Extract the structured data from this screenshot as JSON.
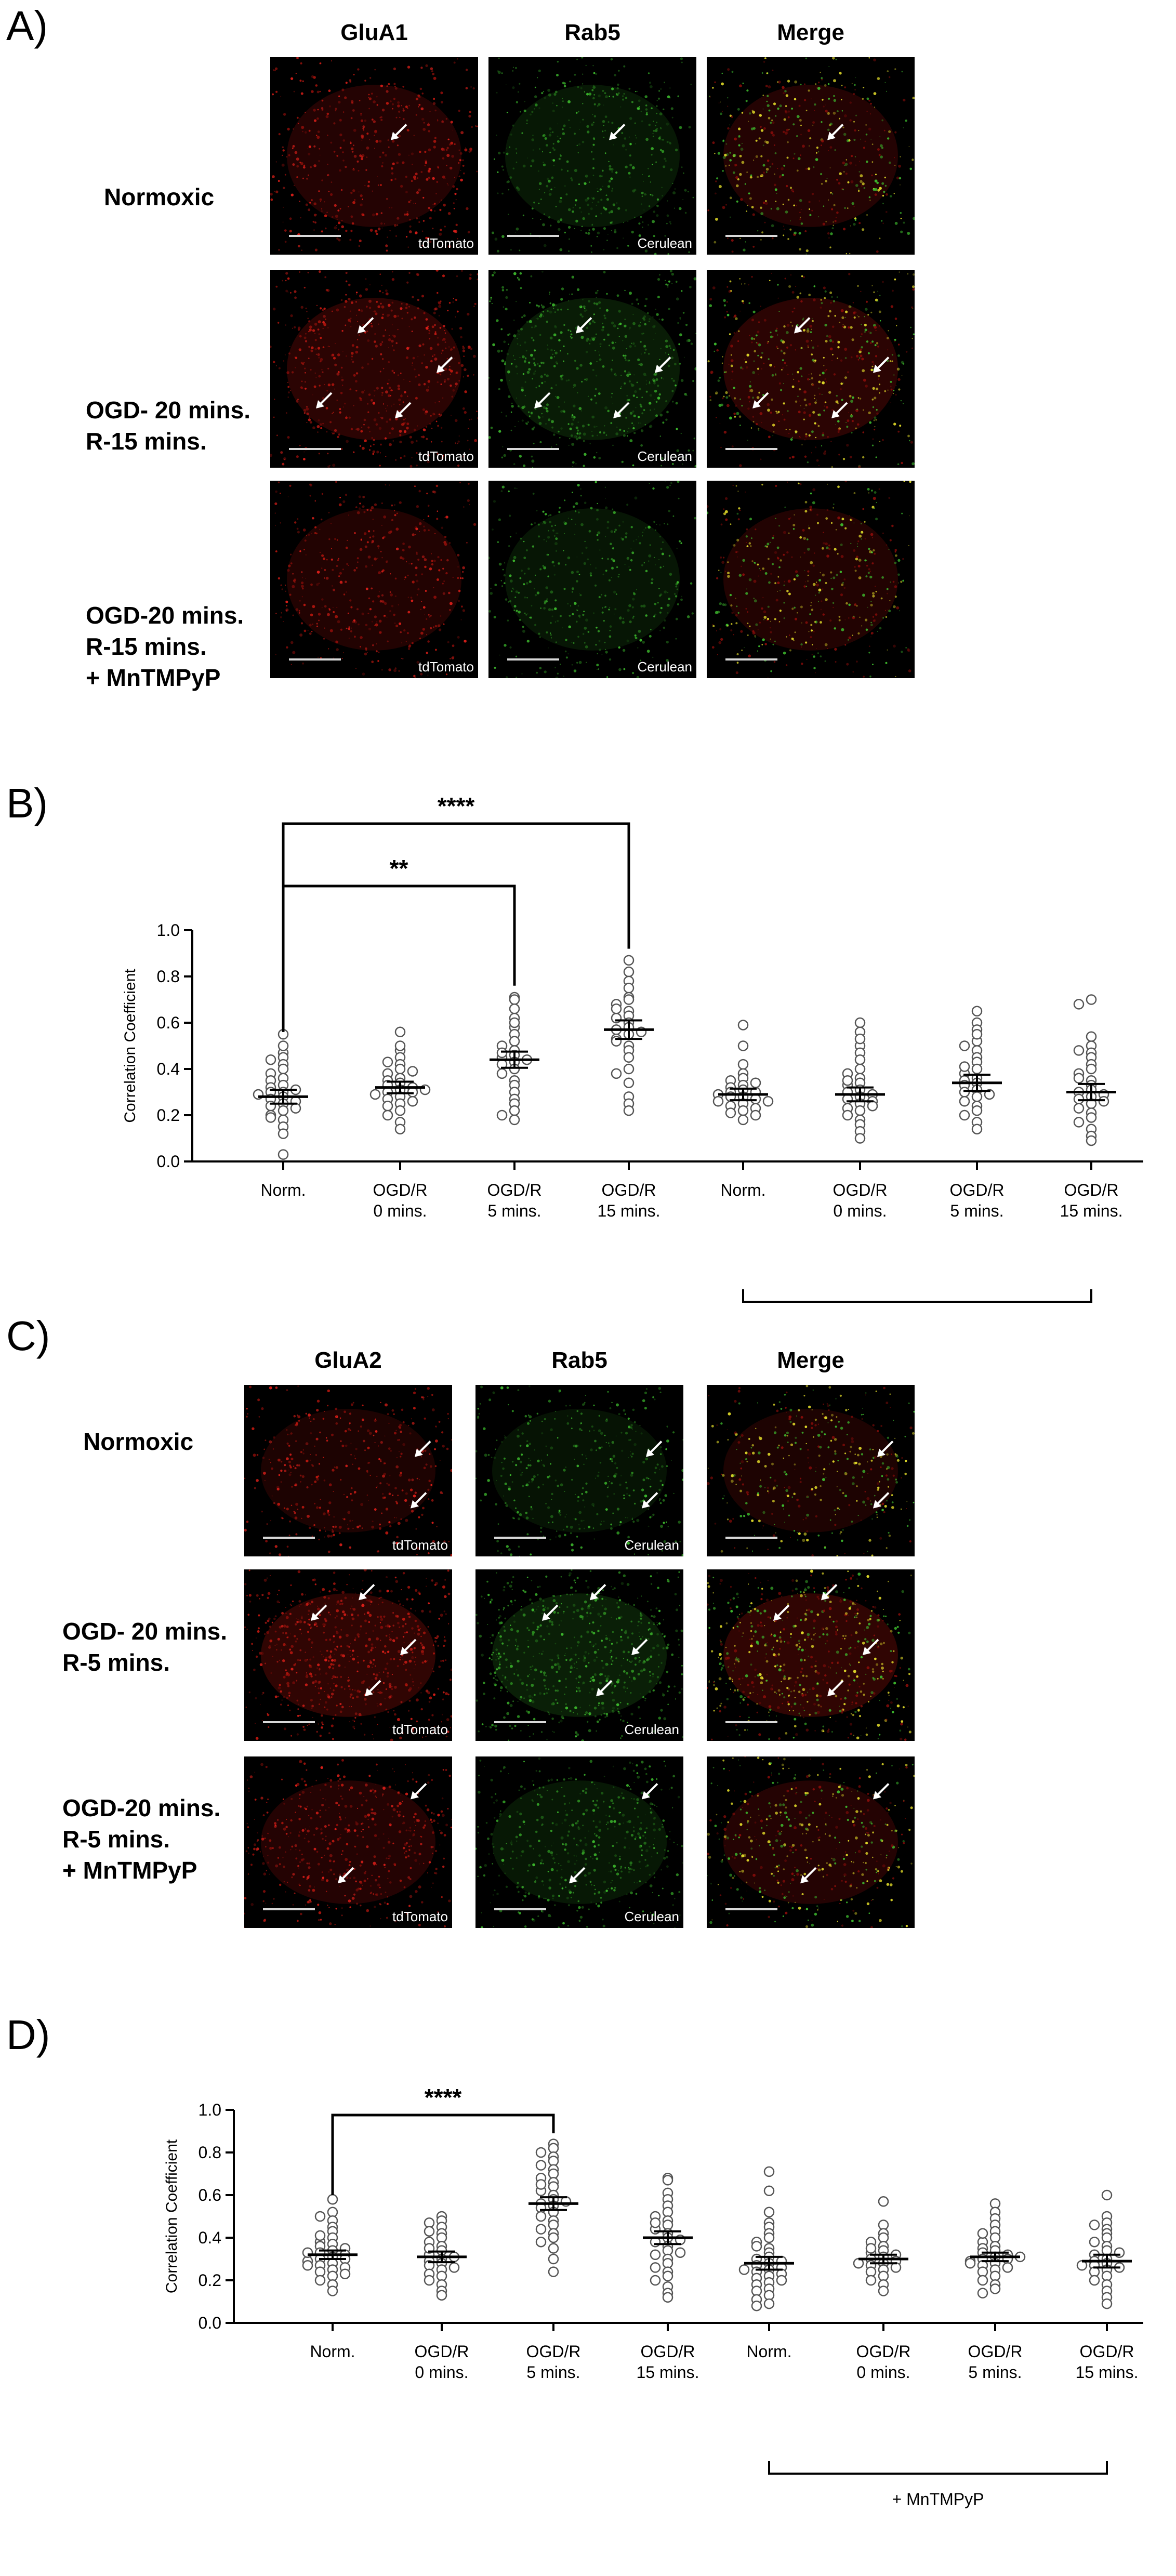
{
  "panels": {
    "a": {
      "letter": "A)",
      "columns": [
        "GluA1",
        "Rab5",
        "Merge"
      ],
      "rows": [
        {
          "label": [
            "Normoxic"
          ],
          "channels": [
            "tdTomato",
            "Cerulean",
            ""
          ]
        },
        {
          "label": [
            "OGD- 20 mins.",
            "R-15 mins."
          ],
          "channels": [
            "tdTomato",
            "Cerulean",
            ""
          ]
        },
        {
          "label": [
            "OGD-20 mins.",
            "R-15 mins.",
            "+ MnTMPyP"
          ],
          "channels": [
            "tdTomato",
            "Cerulean",
            ""
          ]
        }
      ]
    },
    "b": {
      "letter": "B)"
    },
    "c": {
      "letter": "C)",
      "columns": [
        "GluA2",
        "Rab5",
        "Merge"
      ],
      "rows": [
        {
          "label": [
            "Normoxic"
          ],
          "channels": [
            "tdTomato",
            "Cerulean",
            ""
          ]
        },
        {
          "label": [
            "OGD- 20 mins.",
            "R-5 mins."
          ],
          "channels": [
            "tdTomato",
            "Cerulean",
            ""
          ]
        },
        {
          "label": [
            "OGD-20 mins.",
            "R-5 mins.",
            "+ MnTMPyP"
          ],
          "channels": [
            "tdTomato",
            "Cerulean",
            ""
          ]
        }
      ]
    },
    "d": {
      "letter": "D)"
    }
  },
  "colors": {
    "red_channel": "#e0201a",
    "green_channel": "#3fbf2f",
    "merge_yellow": "#e6e02a"
  },
  "chart_data": [
    {
      "id": "B",
      "type": "scatter",
      "title": "",
      "ylabel": "Correlation Coefficient",
      "ylim": [
        0,
        1.0
      ],
      "yticks": [
        "0.0",
        "0.2",
        "0.4",
        "0.6",
        "0.8",
        "1.0"
      ],
      "categories": [
        [
          "Norm."
        ],
        [
          "OGD/R",
          "0 mins."
        ],
        [
          "OGD/R",
          "5 mins."
        ],
        [
          "OGD/R",
          "15 mins."
        ],
        [
          "Norm."
        ],
        [
          "OGD/R",
          "0 mins."
        ],
        [
          "OGD/R",
          "5 mins."
        ],
        [
          "OGD/R",
          "15 mins."
        ]
      ],
      "means": [
        0.28,
        0.32,
        0.44,
        0.57,
        0.29,
        0.29,
        0.34,
        0.3
      ],
      "sem": [
        0.03,
        0.025,
        0.035,
        0.04,
        0.025,
        0.03,
        0.035,
        0.035
      ],
      "points": [
        [
          0.55,
          0.47,
          0.45,
          0.42,
          0.4,
          0.38,
          0.36,
          0.35,
          0.33,
          0.32,
          0.3,
          0.3,
          0.28,
          0.27,
          0.26,
          0.25,
          0.24,
          0.22,
          0.2,
          0.18,
          0.15,
          0.12,
          0.03,
          0.5,
          0.44,
          0.31,
          0.29,
          0.23,
          0.19
        ],
        [
          0.56,
          0.48,
          0.45,
          0.42,
          0.4,
          0.38,
          0.36,
          0.35,
          0.34,
          0.33,
          0.32,
          0.31,
          0.3,
          0.3,
          0.29,
          0.28,
          0.27,
          0.26,
          0.25,
          0.24,
          0.22,
          0.2,
          0.17,
          0.14,
          0.5,
          0.43,
          0.39,
          0.31
        ],
        [
          0.71,
          0.7,
          0.66,
          0.62,
          0.58,
          0.55,
          0.52,
          0.5,
          0.48,
          0.46,
          0.45,
          0.44,
          0.43,
          0.42,
          0.4,
          0.38,
          0.35,
          0.33,
          0.3,
          0.27,
          0.25,
          0.22,
          0.2,
          0.18,
          0.6,
          0.47
        ],
        [
          0.87,
          0.82,
          0.78,
          0.75,
          0.71,
          0.7,
          0.68,
          0.65,
          0.63,
          0.62,
          0.6,
          0.58,
          0.57,
          0.56,
          0.55,
          0.53,
          0.5,
          0.48,
          0.45,
          0.4,
          0.38,
          0.34,
          0.28,
          0.25,
          0.22,
          0.66,
          0.52
        ],
        [
          0.59,
          0.5,
          0.42,
          0.38,
          0.36,
          0.35,
          0.33,
          0.32,
          0.31,
          0.3,
          0.3,
          0.29,
          0.28,
          0.28,
          0.27,
          0.26,
          0.25,
          0.24,
          0.23,
          0.22,
          0.21,
          0.2,
          0.18,
          0.34,
          0.26
        ],
        [
          0.6,
          0.56,
          0.5,
          0.47,
          0.44,
          0.4,
          0.38,
          0.36,
          0.34,
          0.33,
          0.31,
          0.3,
          0.29,
          0.28,
          0.27,
          0.26,
          0.25,
          0.23,
          0.22,
          0.2,
          0.18,
          0.16,
          0.13,
          0.1,
          0.53,
          0.35,
          0.24
        ],
        [
          0.65,
          0.6,
          0.57,
          0.52,
          0.5,
          0.48,
          0.45,
          0.43,
          0.4,
          0.38,
          0.36,
          0.35,
          0.34,
          0.33,
          0.31,
          0.3,
          0.28,
          0.26,
          0.24,
          0.22,
          0.2,
          0.17,
          0.14,
          0.55,
          0.41,
          0.29
        ],
        [
          0.7,
          0.68,
          0.54,
          0.5,
          0.47,
          0.45,
          0.42,
          0.4,
          0.38,
          0.35,
          0.33,
          0.31,
          0.3,
          0.29,
          0.28,
          0.27,
          0.25,
          0.23,
          0.21,
          0.19,
          0.17,
          0.14,
          0.11,
          0.09,
          0.48,
          0.36,
          0.26
        ]
      ],
      "significance": [
        {
          "from": 0,
          "to": 3,
          "label": "****"
        },
        {
          "from": 0,
          "to": 2,
          "label": "**"
        }
      ],
      "group_bracket": {
        "from": 4,
        "to": 7,
        "label": ""
      }
    },
    {
      "id": "D",
      "type": "scatter",
      "title": "",
      "ylabel": "Correlation Coefficient",
      "ylim": [
        0,
        1.0
      ],
      "yticks": [
        "0.0",
        "0.2",
        "0.4",
        "0.6",
        "0.8",
        "1.0"
      ],
      "categories": [
        [
          "Norm."
        ],
        [
          "OGD/R",
          "0 mins."
        ],
        [
          "OGD/R",
          "5 mins."
        ],
        [
          "OGD/R",
          "15 mins."
        ],
        [
          "Norm."
        ],
        [
          "OGD/R",
          "0 mins."
        ],
        [
          "OGD/R",
          "5 mins."
        ],
        [
          "OGD/R",
          "15 mins."
        ]
      ],
      "means": [
        0.32,
        0.31,
        0.56,
        0.4,
        0.28,
        0.3,
        0.31,
        0.29
      ],
      "sem": [
        0.02,
        0.025,
        0.03,
        0.03,
        0.03,
        0.02,
        0.02,
        0.03
      ],
      "points": [
        [
          0.58,
          0.52,
          0.48,
          0.45,
          0.43,
          0.4,
          0.38,
          0.37,
          0.36,
          0.35,
          0.34,
          0.33,
          0.32,
          0.31,
          0.3,
          0.3,
          0.29,
          0.28,
          0.27,
          0.26,
          0.25,
          0.24,
          0.23,
          0.22,
          0.2,
          0.18,
          0.15,
          0.5,
          0.41,
          0.33,
          0.27
        ],
        [
          0.5,
          0.48,
          0.47,
          0.45,
          0.42,
          0.4,
          0.38,
          0.36,
          0.34,
          0.32,
          0.3,
          0.29,
          0.28,
          0.27,
          0.26,
          0.25,
          0.23,
          0.22,
          0.2,
          0.18,
          0.15,
          0.13,
          0.43,
          0.35,
          0.31
        ],
        [
          0.84,
          0.82,
          0.8,
          0.78,
          0.76,
          0.74,
          0.72,
          0.7,
          0.68,
          0.66,
          0.64,
          0.62,
          0.6,
          0.58,
          0.56,
          0.55,
          0.54,
          0.52,
          0.5,
          0.48,
          0.46,
          0.44,
          0.42,
          0.4,
          0.38,
          0.35,
          0.3,
          0.24,
          0.65,
          0.57
        ],
        [
          0.68,
          0.67,
          0.61,
          0.58,
          0.55,
          0.52,
          0.5,
          0.48,
          0.46,
          0.44,
          0.42,
          0.4,
          0.38,
          0.36,
          0.34,
          0.32,
          0.3,
          0.28,
          0.26,
          0.24,
          0.22,
          0.2,
          0.17,
          0.14,
          0.12,
          0.47,
          0.39,
          0.33
        ],
        [
          0.71,
          0.62,
          0.52,
          0.47,
          0.45,
          0.42,
          0.4,
          0.38,
          0.35,
          0.33,
          0.31,
          0.3,
          0.29,
          0.28,
          0.27,
          0.26,
          0.25,
          0.24,
          0.23,
          0.22,
          0.21,
          0.2,
          0.19,
          0.18,
          0.16,
          0.15,
          0.13,
          0.11,
          0.09,
          0.08,
          0.36,
          0.25
        ],
        [
          0.57,
          0.46,
          0.42,
          0.4,
          0.38,
          0.36,
          0.34,
          0.33,
          0.32,
          0.31,
          0.3,
          0.29,
          0.28,
          0.27,
          0.26,
          0.25,
          0.24,
          0.22,
          0.2,
          0.18,
          0.15,
          0.35,
          0.28
        ],
        [
          0.56,
          0.52,
          0.49,
          0.46,
          0.43,
          0.4,
          0.38,
          0.36,
          0.35,
          0.34,
          0.33,
          0.32,
          0.31,
          0.3,
          0.3,
          0.29,
          0.28,
          0.27,
          0.26,
          0.25,
          0.24,
          0.22,
          0.2,
          0.18,
          0.16,
          0.14,
          0.42,
          0.31,
          0.28
        ],
        [
          0.6,
          0.5,
          0.47,
          0.44,
          0.42,
          0.4,
          0.38,
          0.36,
          0.34,
          0.32,
          0.3,
          0.29,
          0.28,
          0.27,
          0.26,
          0.25,
          0.24,
          0.22,
          0.2,
          0.18,
          0.15,
          0.12,
          0.09,
          0.46,
          0.33,
          0.27
        ]
      ],
      "significance": [
        {
          "from": 0,
          "to": 2,
          "label": "****"
        }
      ],
      "group_bracket": {
        "from": 4,
        "to": 7,
        "label": "+ MnTMPyP"
      }
    }
  ]
}
